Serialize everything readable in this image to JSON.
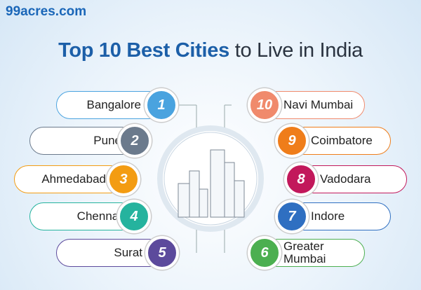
{
  "brand": "99acres.com",
  "title": {
    "highlight": "Top 10 Best Cities",
    "rest": "to Live in India"
  },
  "cities": [
    {
      "rank": 1,
      "name": "Bangalore",
      "color": "#4aa3df"
    },
    {
      "rank": 2,
      "name": "Pune",
      "color": "#6b7a8c"
    },
    {
      "rank": 3,
      "name": "Ahmedabad",
      "color": "#f39c12"
    },
    {
      "rank": 4,
      "name": "Chennai",
      "color": "#25b39e"
    },
    {
      "rank": 5,
      "name": "Surat",
      "color": "#5c4a9c"
    },
    {
      "rank": 6,
      "name": "Greater Mumbai",
      "color": "#4caf50"
    },
    {
      "rank": 7,
      "name": "Indore",
      "color": "#2f6fc1"
    },
    {
      "rank": 8,
      "name": "Vadodara",
      "color": "#c2185b"
    },
    {
      "rank": 9,
      "name": "Coimbatore",
      "color": "#ef7d1a"
    },
    {
      "rank": 10,
      "name": "Navi Mumbai",
      "color": "#f08a6c"
    }
  ]
}
